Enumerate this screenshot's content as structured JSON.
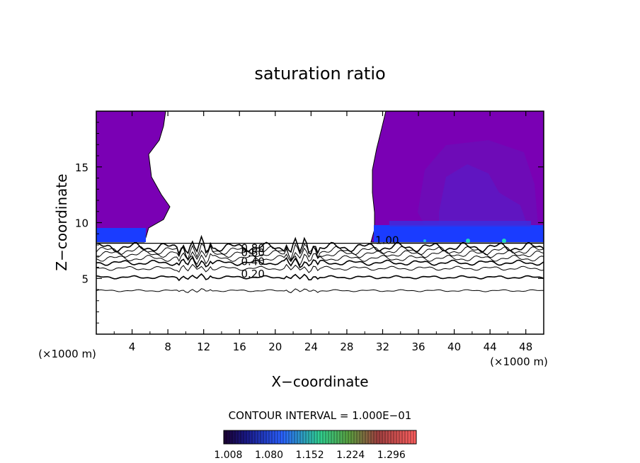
{
  "chart_data": {
    "type": "heatmap",
    "title": "saturation ratio",
    "xlabel": "X−coordinate",
    "ylabel": "Z−coordinate",
    "x_unit_left": "(×1000 m)",
    "x_unit_right": "(×1000 m)",
    "xlim": [
      0,
      50
    ],
    "ylim": [
      0,
      20
    ],
    "x_ticks": [
      4,
      8,
      12,
      16,
      20,
      24,
      28,
      32,
      36,
      40,
      44,
      48
    ],
    "y_ticks": [
      5,
      10,
      15
    ],
    "contour_interval_text": "CONTOUR INTERVAL = 1.000E−01",
    "colorbar_labels": [
      "1.008",
      "1.080",
      "1.152",
      "1.224",
      "1.296"
    ],
    "colorbar_range": [
      1.0,
      1.34
    ],
    "contour_labels": [
      {
        "text": "0.80",
        "x": 17.5,
        "z": 7.7
      },
      {
        "text": "0.60",
        "x": 17.5,
        "z": 7.3
      },
      {
        "text": "0.40",
        "x": 17.5,
        "z": 6.5
      },
      {
        "text": "0.20",
        "x": 17.5,
        "z": 5.4
      },
      {
        "text": "1.00",
        "x": 32.5,
        "z": 8.4
      }
    ],
    "contour_levels": [
      {
        "value": 0.1,
        "z": 3.9
      },
      {
        "value": 0.2,
        "z": 5.1
      },
      {
        "value": 0.3,
        "z": 5.9
      },
      {
        "value": 0.4,
        "z": 6.4
      },
      {
        "value": 0.5,
        "z": 6.8
      },
      {
        "value": 0.6,
        "z": 7.2
      },
      {
        "value": 0.7,
        "z": 7.5
      },
      {
        "value": 0.8,
        "z": 7.8
      }
    ],
    "saturated_regions": [
      {
        "x_range": [
          0,
          7
        ],
        "z_range": [
          8.2,
          20
        ],
        "value": 1.01
      },
      {
        "x_range": [
          31,
          50
        ],
        "z_range": [
          8.2,
          20
        ],
        "value": 1.01
      }
    ],
    "colors": {
      "supersat": "#7a00b4",
      "band_blue": "#1a3cff",
      "bar_low": "#1a0030",
      "bar_high": "#ff4a4a"
    }
  }
}
